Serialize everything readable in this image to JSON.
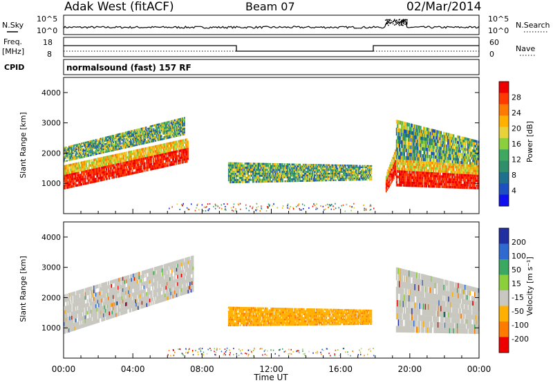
{
  "header": {
    "radar": "Adak West (fitACF)",
    "beam": "Beam 07",
    "date": "02/Mar/2014"
  },
  "noise_panel": {
    "left_label": "N.Sky",
    "right_label": "N.Search",
    "left_ticks": [
      "10^5",
      "10^0"
    ],
    "right_ticks": [
      "10^5",
      "10^0"
    ]
  },
  "freq_panel": {
    "left_label_1": "Freq.",
    "left_label_2": "[MHz]",
    "right_label": "Nave",
    "left_ticks": [
      "18",
      "8"
    ],
    "right_ticks": [
      "60",
      "0"
    ]
  },
  "cpid_panel": {
    "label": "CPID",
    "program": "normalsound (fast) 157 RF"
  },
  "time_axis": {
    "label": "Time UT",
    "ticks": [
      "00:00",
      "04:00",
      "08:00",
      "12:00",
      "16:00",
      "20:00",
      "00:00"
    ]
  },
  "chart_data": [
    {
      "type": "heatmap",
      "title": "",
      "xlabel": "Time UT",
      "ylabel": "Slant Range [km]",
      "xlim": [
        0,
        24
      ],
      "ylim": [
        0,
        4500
      ],
      "yticks": [
        "1000",
        "2000",
        "3000",
        "4000"
      ],
      "colorbar": {
        "label": "Power [dB]",
        "ticks": [
          "28",
          "24",
          "20",
          "16",
          "12",
          "8",
          "4"
        ],
        "colors": [
          "#ee0000",
          "#ff3a00",
          "#ff7a00",
          "#ffb000",
          "#e8d23a",
          "#8ccf3c",
          "#3fa860",
          "#2f8f6a",
          "#1f6f8f",
          "#1e4fc0",
          "#1010ee"
        ]
      },
      "regions": [
        {
          "t0": 0.0,
          "t1": 7.2,
          "r_lo_start": 800,
          "r_lo_end": 1700,
          "r_hi_start": 1600,
          "r_hi_end": 2500,
          "level": "high"
        },
        {
          "t0": 0.0,
          "t1": 7.0,
          "r_lo_start": 1700,
          "r_lo_end": 2600,
          "r_hi_start": 2200,
          "r_hi_end": 3200,
          "level": "mid"
        },
        {
          "t0": 9.5,
          "t1": 17.8,
          "r_lo_start": 1000,
          "r_lo_end": 1100,
          "r_hi_start": 1700,
          "r_hi_end": 1600,
          "level": "mid"
        },
        {
          "t0": 18.6,
          "t1": 19.2,
          "r_lo_start": 700,
          "r_lo_end": 1300,
          "r_hi_start": 1300,
          "r_hi_end": 2200,
          "level": "high"
        },
        {
          "t0": 19.2,
          "t1": 24.0,
          "r_lo_start": 900,
          "r_lo_end": 800,
          "r_hi_start": 1800,
          "r_hi_end": 1600,
          "level": "high"
        },
        {
          "t0": 19.2,
          "t1": 24.0,
          "r_lo_start": 1800,
          "r_lo_end": 1600,
          "r_hi_start": 3100,
          "r_hi_end": 2400,
          "level": "mid"
        }
      ]
    },
    {
      "type": "heatmap",
      "title": "",
      "xlabel": "Time UT",
      "ylabel": "Slant Range [km]",
      "xlim": [
        0,
        24
      ],
      "ylim": [
        0,
        4500
      ],
      "yticks": [
        "1000",
        "2000",
        "3000",
        "4000"
      ],
      "colorbar": {
        "label": "Velocity [m s⁻¹]",
        "ticks": [
          "200",
          "100",
          "50",
          "15",
          "-15",
          "-50",
          "-100",
          "-200"
        ],
        "colors": [
          "#2030a0",
          "#2f6ad0",
          "#3aa860",
          "#8ccf3c",
          "#c8c8c0",
          "#ffb000",
          "#ff7a00",
          "#ee0000"
        ]
      },
      "regions": [
        {
          "t0": 0.0,
          "t1": 7.5,
          "r_lo_start": 800,
          "r_lo_end": 2200,
          "r_hi_start": 2100,
          "r_hi_end": 3400,
          "level": "ground"
        },
        {
          "t0": 9.5,
          "t1": 17.8,
          "r_lo_start": 1050,
          "r_lo_end": 1100,
          "r_hi_start": 1700,
          "r_hi_end": 1600,
          "level": "away"
        },
        {
          "t0": 19.2,
          "t1": 24.0,
          "r_lo_start": 850,
          "r_lo_end": 800,
          "r_hi_start": 3000,
          "r_hi_end": 2300,
          "level": "ground"
        }
      ]
    }
  ]
}
